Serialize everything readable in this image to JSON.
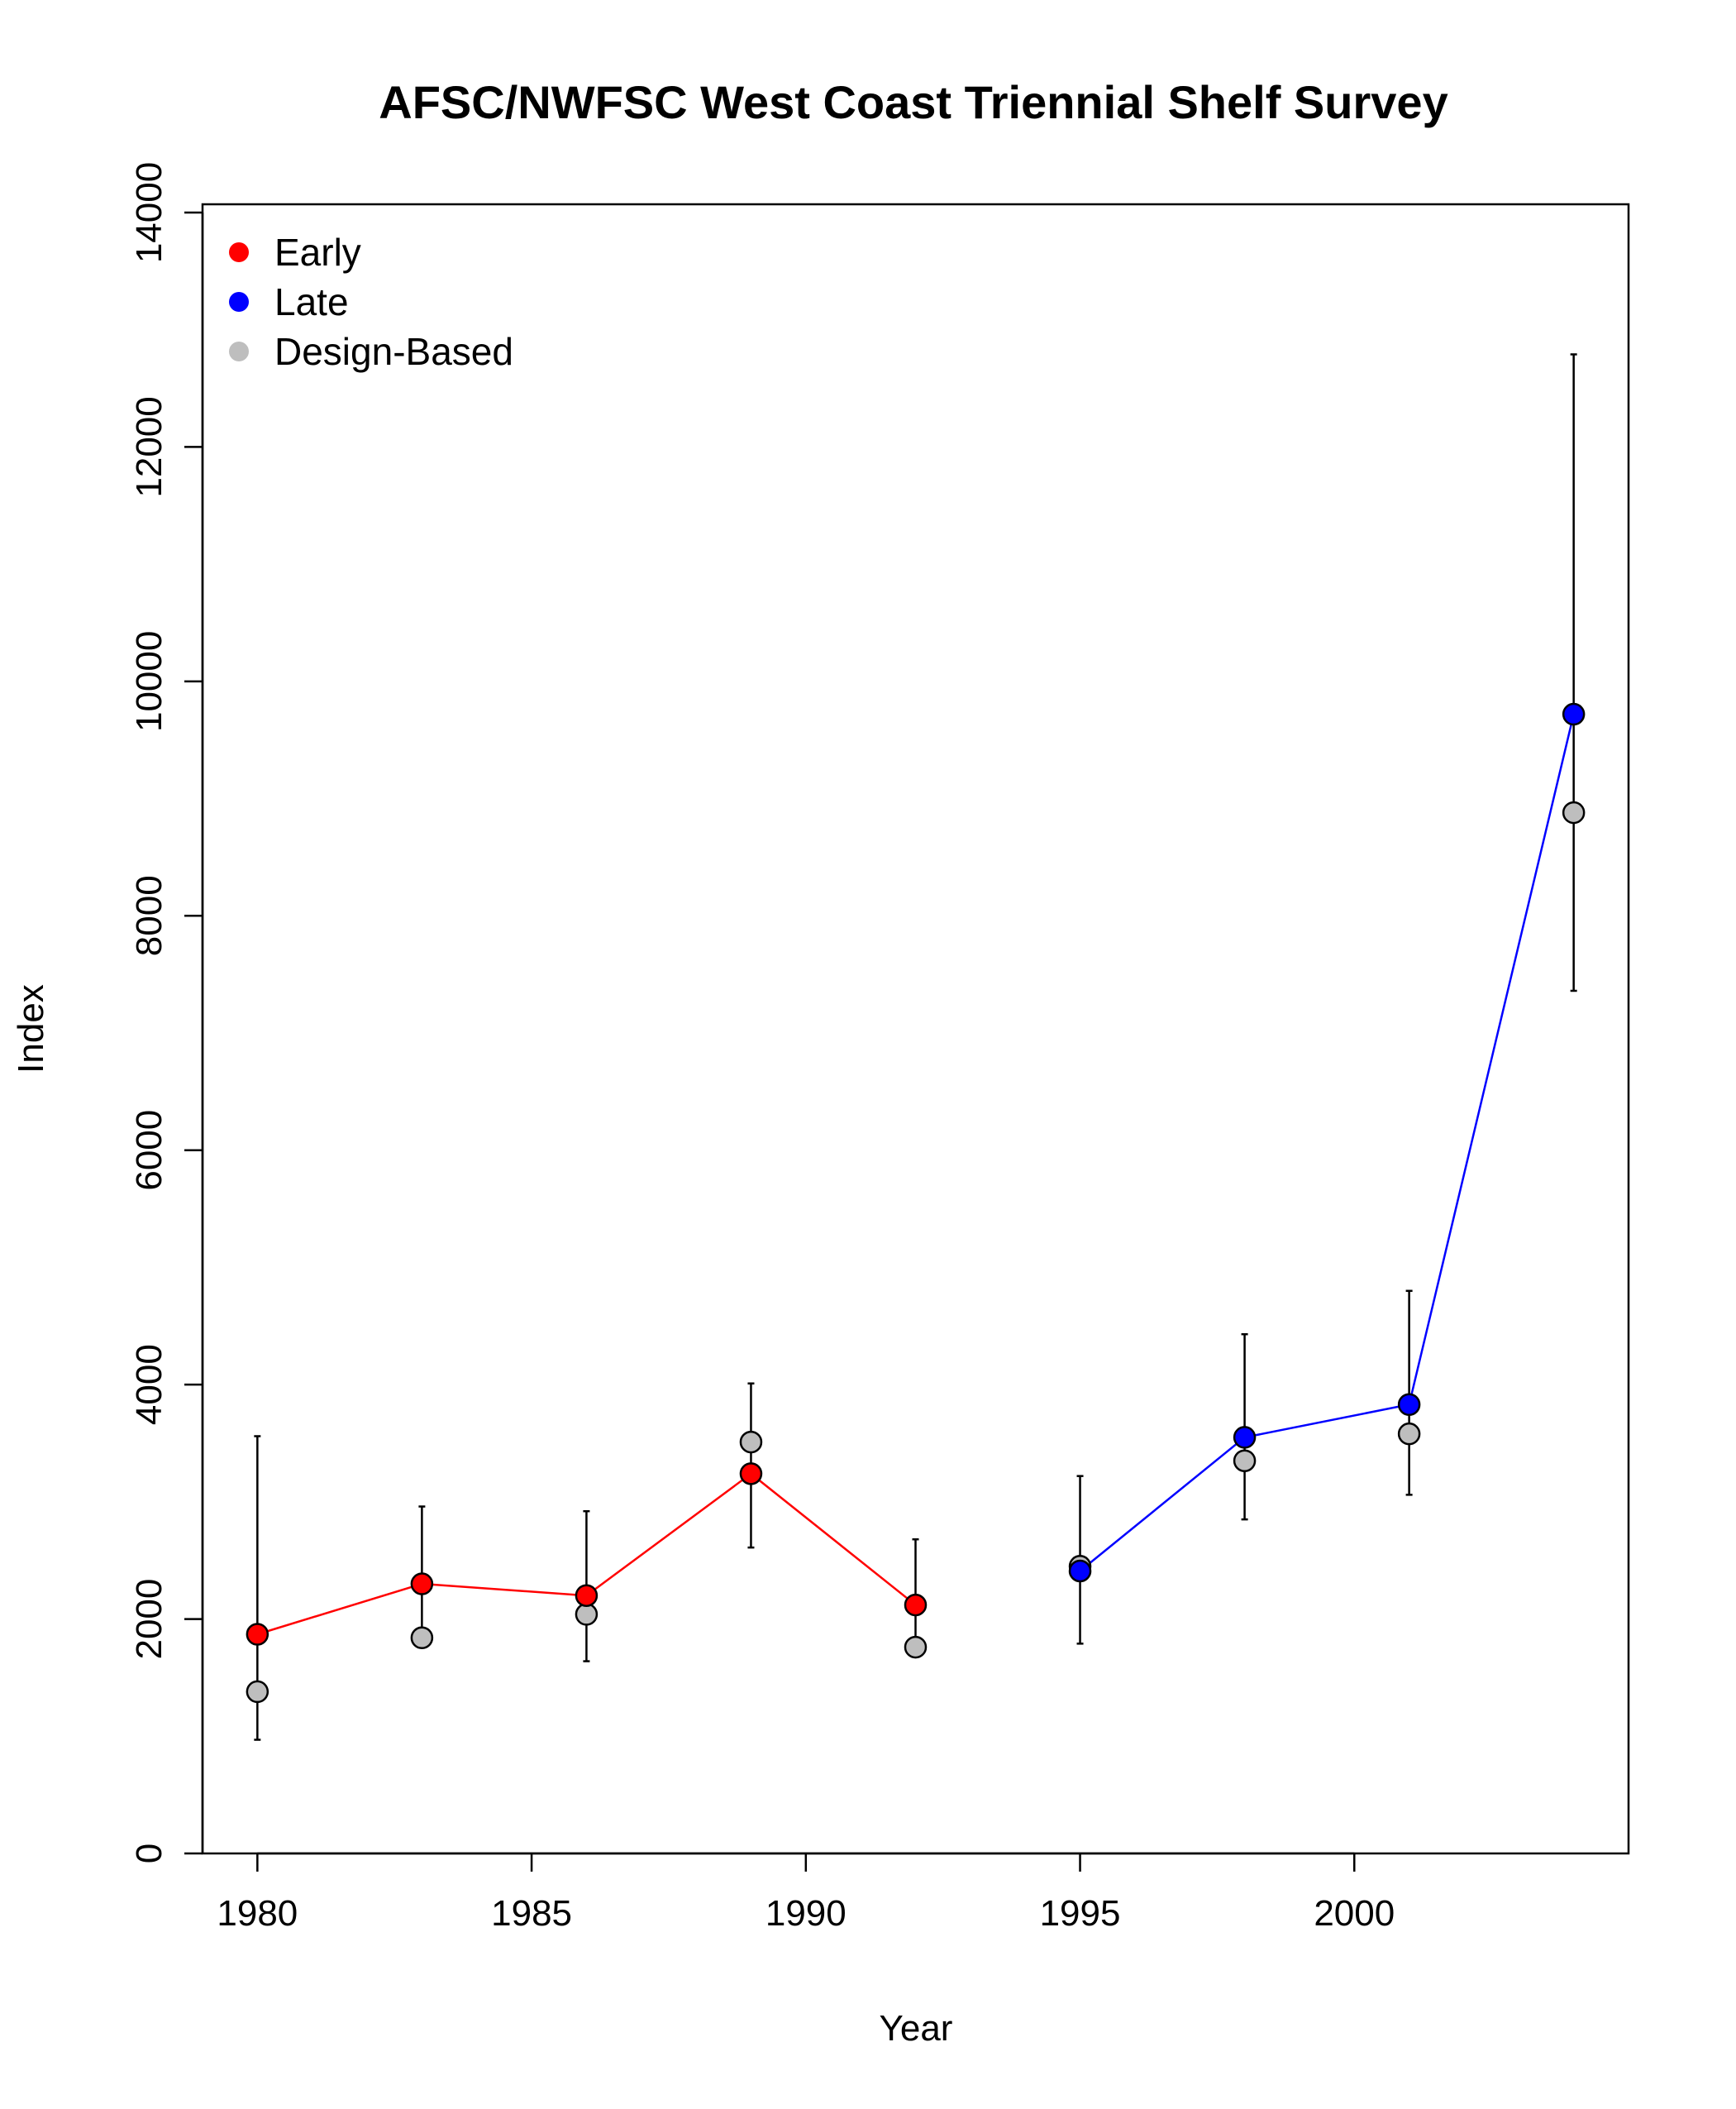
{
  "chart_data": {
    "type": "scatter",
    "title": "AFSC/NWFSC West Coast Triennial Shelf Survey",
    "xlabel": "Year",
    "ylabel": "Index",
    "xlim": [
      1979,
      2005
    ],
    "ylim": [
      0,
      14000
    ],
    "xticks": [
      1980,
      1985,
      1990,
      1995,
      2000
    ],
    "yticks": [
      0,
      2000,
      4000,
      6000,
      8000,
      10000,
      12000,
      14000
    ],
    "legend_position": "top-left",
    "grid": false,
    "series": [
      {
        "name": "Early",
        "color": "#ff0000",
        "line": true,
        "points": [
          {
            "x": 1980,
            "y": 1870,
            "lo": 970,
            "hi": 3560
          },
          {
            "x": 1983,
            "y": 2300,
            "lo": 1840,
            "hi": 2960
          },
          {
            "x": 1986,
            "y": 2200,
            "lo": 1640,
            "hi": 2920
          },
          {
            "x": 1989,
            "y": 3240,
            "lo": 2610,
            "hi": 4010
          },
          {
            "x": 1992,
            "y": 2120,
            "lo": 1760,
            "hi": 2680
          }
        ]
      },
      {
        "name": "Late",
        "color": "#0000ff",
        "line": true,
        "points": [
          {
            "x": 1995,
            "y": 2410,
            "lo": 1790,
            "hi": 3220
          },
          {
            "x": 1998,
            "y": 3550,
            "lo": 2850,
            "hi": 4430
          },
          {
            "x": 2001,
            "y": 3830,
            "lo": 3060,
            "hi": 4800
          },
          {
            "x": 2004,
            "y": 9720,
            "lo": 7360,
            "hi": 12790
          }
        ]
      },
      {
        "name": "Design-Based",
        "color": "#bebebe",
        "line": false,
        "points": [
          {
            "x": 1980,
            "y": 1380
          },
          {
            "x": 1983,
            "y": 1840
          },
          {
            "x": 1986,
            "y": 2040
          },
          {
            "x": 1989,
            "y": 3510
          },
          {
            "x": 1992,
            "y": 1760
          },
          {
            "x": 1995,
            "y": 2450
          },
          {
            "x": 1998,
            "y": 3350
          },
          {
            "x": 2001,
            "y": 3580
          },
          {
            "x": 2004,
            "y": 8880
          }
        ]
      }
    ]
  }
}
